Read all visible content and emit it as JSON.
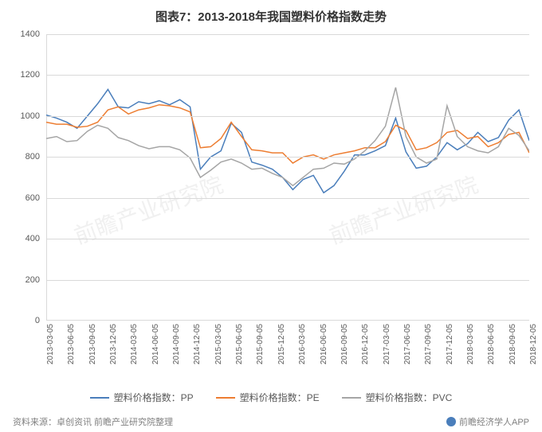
{
  "title": "图表7：2013-2018年我国塑料价格指数走势",
  "source": "资料来源：卓创资讯  前瞻产业研究院整理",
  "attribution": "前瞻经济学人APP",
  "watermark": "前瞻产业研究院",
  "chart": {
    "type": "line",
    "background_color": "#ffffff",
    "grid_color": "#d9d9d9",
    "text_color": "#595959",
    "line_width": 1.5,
    "ylim": [
      0,
      1400
    ],
    "ytick_step": 200,
    "y_ticks": [
      0,
      200,
      400,
      600,
      800,
      1000,
      1200,
      1400
    ],
    "x_labels": [
      "2013-03-05",
      "2013-06-05",
      "2013-09-05",
      "2013-12-05",
      "2014-03-05",
      "2014-06-05",
      "2014-09-05",
      "2014-12-05",
      "2015-03-05",
      "2015-06-05",
      "2015-09-05",
      "2015-12-05",
      "2016-03-05",
      "2016-06-05",
      "2016-09-05",
      "2016-12-05",
      "2017-03-05",
      "2017-06-05",
      "2017-09-05",
      "2017-12-05",
      "2018-03-05",
      "2018-06-05",
      "2018-09-05",
      "2018-12-05"
    ],
    "series": [
      {
        "name": "塑料价格指数：PP",
        "color": "#4a7ebb",
        "values": [
          1005,
          990,
          970,
          940,
          1000,
          1060,
          1130,
          1045,
          1040,
          1070,
          1060,
          1075,
          1055,
          1080,
          1045,
          740,
          800,
          830,
          965,
          920,
          775,
          760,
          740,
          700,
          640,
          690,
          710,
          625,
          660,
          730,
          810,
          810,
          830,
          855,
          990,
          825,
          745,
          755,
          800,
          870,
          835,
          865,
          920,
          875,
          895,
          980,
          1030,
          880
        ]
      },
      {
        "name": "塑料价格指数：PE",
        "color": "#ed7d31",
        "values": [
          970,
          960,
          960,
          945,
          950,
          970,
          1030,
          1045,
          1010,
          1030,
          1040,
          1055,
          1050,
          1040,
          1020,
          845,
          850,
          890,
          970,
          900,
          835,
          830,
          820,
          820,
          770,
          800,
          810,
          790,
          810,
          820,
          830,
          845,
          845,
          875,
          955,
          930,
          835,
          845,
          870,
          920,
          930,
          890,
          900,
          850,
          870,
          910,
          920,
          820
        ]
      },
      {
        "name": "塑料价格指数：PVC",
        "color": "#a5a5a5",
        "values": [
          890,
          900,
          875,
          880,
          925,
          955,
          940,
          895,
          880,
          855,
          840,
          850,
          850,
          835,
          795,
          700,
          735,
          775,
          790,
          770,
          740,
          745,
          720,
          700,
          660,
          700,
          740,
          745,
          770,
          765,
          790,
          830,
          880,
          950,
          1140,
          900,
          800,
          770,
          790,
          1050,
          900,
          850,
          830,
          820,
          850,
          940,
          905,
          830
        ]
      }
    ],
    "legend_position": "bottom"
  }
}
